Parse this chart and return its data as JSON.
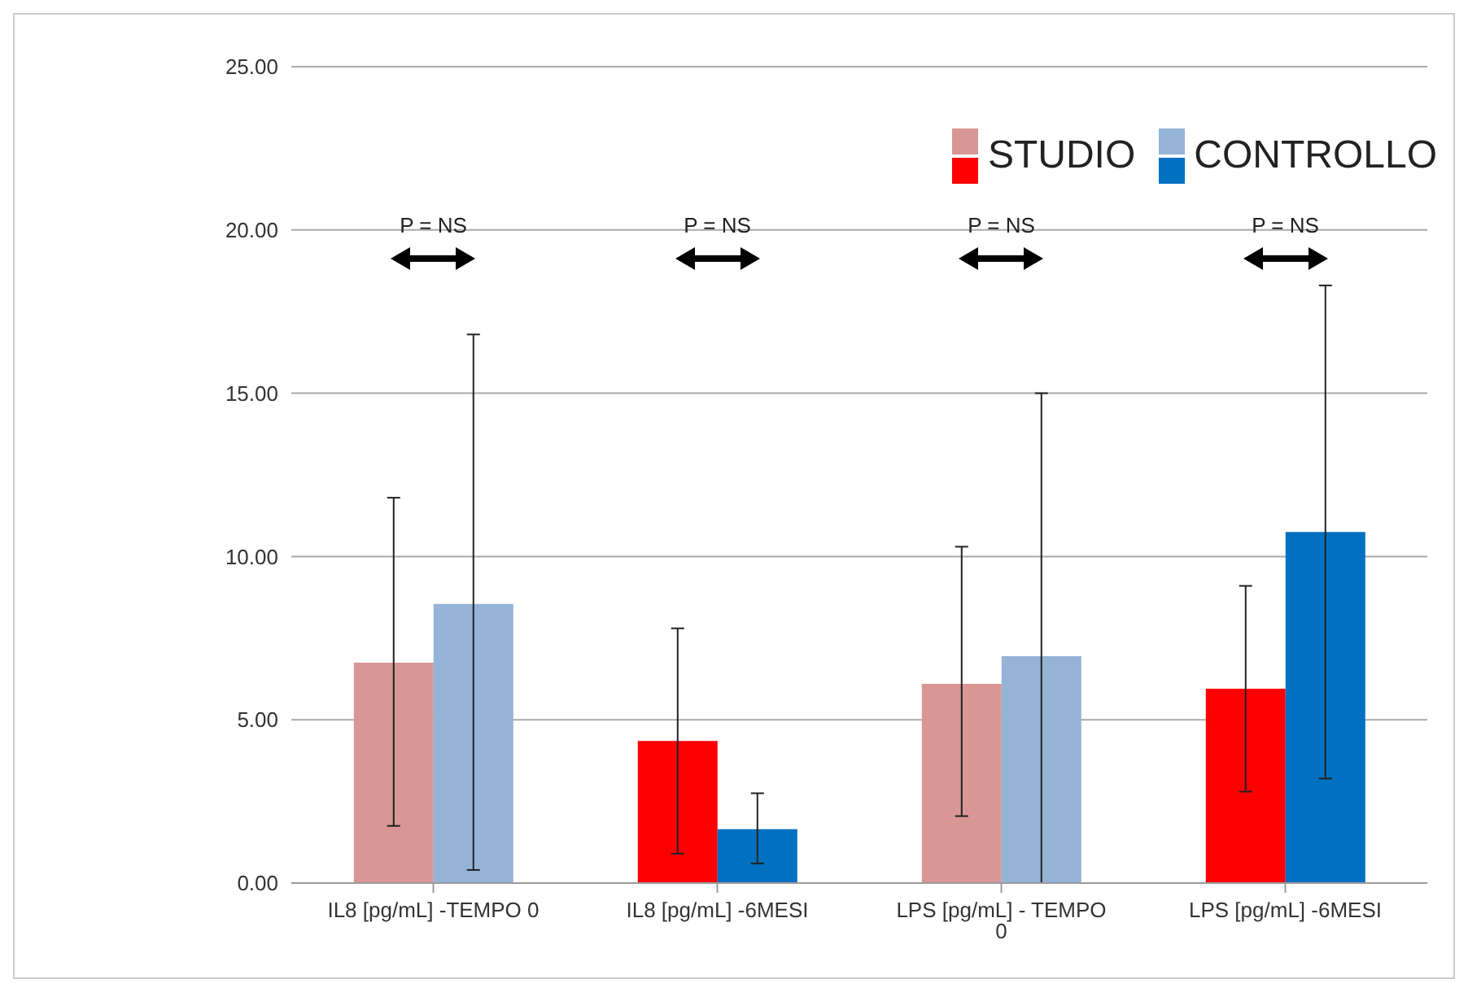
{
  "chart_data": {
    "type": "bar",
    "categories": [
      "IL8 [pg/mL] -TEMPO 0",
      "IL8 [pg/mL] -6MESI",
      "LPS [pg/mL] - TEMPO 0",
      "LPS [pg/mL] -6MESI"
    ],
    "series": [
      {
        "name": "STUDIO",
        "colors": [
          "#d99694",
          "#ff0000",
          "#d99694",
          "#ff0000"
        ],
        "values": [
          6.75,
          4.35,
          6.1,
          5.95
        ],
        "errors": [
          [
            1.75,
            11.8
          ],
          [
            0.9,
            7.8
          ],
          [
            2.05,
            10.3
          ],
          [
            2.8,
            9.1
          ]
        ]
      },
      {
        "name": "CONTROLLO",
        "colors": [
          "#95b3d7",
          "#0070c0",
          "#95b3d7",
          "#0070c0"
        ],
        "values": [
          8.55,
          1.65,
          6.95,
          10.75
        ],
        "errors": [
          [
            0.4,
            16.8
          ],
          [
            0.6,
            2.75
          ],
          [
            0,
            15.0
          ],
          [
            3.2,
            18.3
          ]
        ]
      }
    ],
    "ylim": [
      0,
      25
    ],
    "yticks": [
      {
        "value": 0,
        "label": "0.00"
      },
      {
        "value": 5,
        "label": "5.00"
      },
      {
        "value": 10,
        "label": "10.00"
      },
      {
        "value": 15,
        "label": "15.00"
      },
      {
        "value": 20,
        "label": "20.00"
      },
      {
        "value": 25,
        "label": "25.00"
      }
    ],
    "grid": "y",
    "legend": "top right",
    "annotations": [
      "P = NS",
      "P = NS",
      "P = NS",
      "P = NS"
    ]
  }
}
